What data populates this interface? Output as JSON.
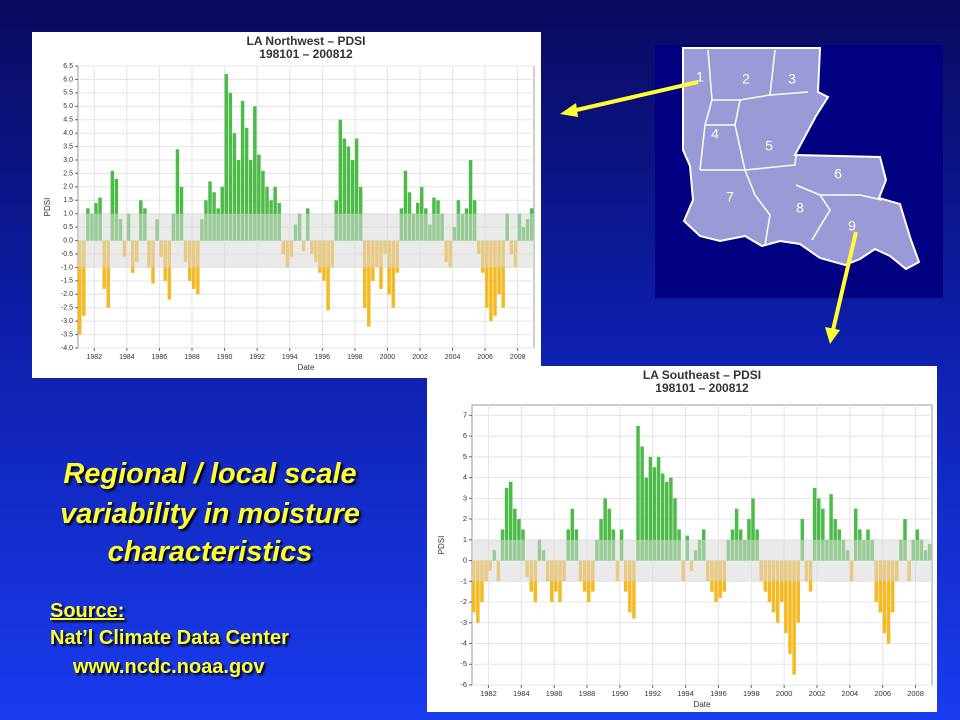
{
  "chart_data": [
    {
      "type": "bar",
      "title": "LA Northwest – PDSI",
      "subtitle": "198101 – 200812",
      "y_label": "PDSI",
      "x_label": "Date",
      "x": [
        1981,
        1981.25,
        1981.5,
        1981.75,
        1982,
        1982.25,
        1982.5,
        1982.75,
        1983,
        1983.25,
        1983.5,
        1983.75,
        1984,
        1984.25,
        1984.5,
        1984.75,
        1985,
        1985.25,
        1985.5,
        1985.75,
        1986,
        1986.25,
        1986.5,
        1986.75,
        1987,
        1987.25,
        1987.5,
        1987.75,
        1988,
        1988.25,
        1988.5,
        1988.75,
        1989,
        1989.25,
        1989.5,
        1989.75,
        1990,
        1990.25,
        1990.5,
        1990.75,
        1991,
        1991.25,
        1991.5,
        1991.75,
        1992,
        1992.25,
        1992.5,
        1992.75,
        1993,
        1993.25,
        1993.5,
        1993.75,
        1994,
        1994.25,
        1994.5,
        1994.75,
        1995,
        1995.25,
        1995.5,
        1995.75,
        1996,
        1996.25,
        1996.5,
        1996.75,
        1997,
        1997.25,
        1997.5,
        1997.75,
        1998,
        1998.25,
        1998.5,
        1998.75,
        1999,
        1999.25,
        1999.5,
        1999.75,
        2000,
        2000.25,
        2000.5,
        2000.75,
        2001,
        2001.25,
        2001.5,
        2001.75,
        2002,
        2002.25,
        2002.5,
        2002.75,
        2003,
        2003.25,
        2003.5,
        2003.75,
        2004,
        2004.25,
        2004.5,
        2004.75,
        2005,
        2005.25,
        2005.5,
        2005.75,
        2006,
        2006.25,
        2006.5,
        2006.75,
        2007,
        2007.25,
        2007.5,
        2007.75,
        2008,
        2008.25,
        2008.5,
        2008.75
      ],
      "values": [
        -3.5,
        -2.8,
        1.2,
        1.0,
        1.4,
        1.6,
        -1.8,
        -2.5,
        2.6,
        2.3,
        0.8,
        -0.6,
        1.0,
        -1.2,
        -0.8,
        1.5,
        1.2,
        -1.0,
        -1.6,
        0.8,
        -0.6,
        -1.5,
        -2.2,
        1.0,
        3.4,
        2.0,
        -0.8,
        -1.5,
        -1.8,
        -2.0,
        0.8,
        1.5,
        2.2,
        1.8,
        1.2,
        2.0,
        6.2,
        5.5,
        4.0,
        3.0,
        5.2,
        4.2,
        3.0,
        5.0,
        3.2,
        2.6,
        2.0,
        1.5,
        2.0,
        1.4,
        -0.5,
        -1.0,
        -0.6,
        0.6,
        1.0,
        -0.4,
        1.2,
        -0.5,
        -0.8,
        -1.2,
        -1.5,
        -2.6,
        -1.0,
        1.5,
        4.5,
        3.8,
        3.5,
        3.0,
        3.8,
        2.0,
        -2.5,
        -3.2,
        -1.5,
        -1.0,
        -1.8,
        -0.5,
        -2.0,
        -2.5,
        -1.2,
        1.2,
        2.6,
        1.8,
        1.0,
        1.4,
        2.0,
        1.2,
        0.6,
        1.6,
        1.5,
        1.0,
        -0.8,
        -1.0,
        0.5,
        1.5,
        1.0,
        1.2,
        3.0,
        1.5,
        -0.5,
        -1.2,
        -2.5,
        -3.0,
        -2.8,
        -2.0,
        -2.5,
        1.0,
        -0.5,
        -1.0,
        1.0,
        0.5,
        0.8,
        1.2
      ],
      "xlim": [
        1981,
        2009
      ],
      "xticks": [
        1982,
        1984,
        1986,
        1988,
        1990,
        1992,
        1994,
        1996,
        1998,
        2000,
        2002,
        2004,
        2006,
        2008
      ],
      "ylim": [
        -4,
        6.5
      ],
      "yticks": [
        {
          "value": -4,
          "label": "-4.0"
        },
        -3.5,
        {
          "value": -3,
          "label": "-3.0"
        },
        -2.5,
        {
          "value": -2,
          "label": "-2.0"
        },
        -1.5,
        {
          "value": -1,
          "label": "-1.0"
        },
        -0.5,
        {
          "value": 0,
          "label": "0.0"
        },
        0.5,
        {
          "value": 1,
          "label": "1.0"
        },
        1.5,
        {
          "value": 2,
          "label": "2.0"
        },
        2.5,
        {
          "value": 3,
          "label": "3.0"
        },
        3.5,
        {
          "value": 4,
          "label": "4.0"
        },
        4.5,
        {
          "value": 5,
          "label": "5.0"
        },
        5.5,
        {
          "value": 6,
          "label": "6.0"
        },
        6.5
      ],
      "neutral_band": [
        -1,
        1
      ],
      "positive_color": "#4cbb47",
      "negative_color": "#f5b921",
      "grid": true
    },
    {
      "type": "bar",
      "title": "LA Southeast – PDSI",
      "subtitle": "198101 – 200812",
      "y_label": "PDSI",
      "x_label": "Date",
      "x": [
        1981,
        1981.25,
        1981.5,
        1981.75,
        1982,
        1982.25,
        1982.5,
        1982.75,
        1983,
        1983.25,
        1983.5,
        1983.75,
        1984,
        1984.25,
        1984.5,
        1984.75,
        1985,
        1985.25,
        1985.5,
        1985.75,
        1986,
        1986.25,
        1986.5,
        1986.75,
        1987,
        1987.25,
        1987.5,
        1987.75,
        1988,
        1988.25,
        1988.5,
        1988.75,
        1989,
        1989.25,
        1989.5,
        1989.75,
        1990,
        1990.25,
        1990.5,
        1990.75,
        1991,
        1991.25,
        1991.5,
        1991.75,
        1992,
        1992.25,
        1992.5,
        1992.75,
        1993,
        1993.25,
        1993.5,
        1993.75,
        1994,
        1994.25,
        1994.5,
        1994.75,
        1995,
        1995.25,
        1995.5,
        1995.75,
        1996,
        1996.25,
        1996.5,
        1996.75,
        1997,
        1997.25,
        1997.5,
        1997.75,
        1998,
        1998.25,
        1998.5,
        1998.75,
        1999,
        1999.25,
        1999.5,
        1999.75,
        2000,
        2000.25,
        2000.5,
        2000.75,
        2001,
        2001.25,
        2001.5,
        2001.75,
        2002,
        2002.25,
        2002.5,
        2002.75,
        2003,
        2003.25,
        2003.5,
        2003.75,
        2004,
        2004.25,
        2004.5,
        2004.75,
        2005,
        2005.25,
        2005.5,
        2005.75,
        2006,
        2006.25,
        2006.5,
        2006.75,
        2007,
        2007.25,
        2007.5,
        2007.75,
        2008,
        2008.25,
        2008.5,
        2008.75
      ],
      "values": [
        -2.5,
        -3.0,
        -2.0,
        -1.0,
        -0.5,
        0.5,
        -1.0,
        1.5,
        3.5,
        3.8,
        2.5,
        2.0,
        1.5,
        -0.8,
        -1.5,
        -2.0,
        1.0,
        0.5,
        -1.0,
        -2.0,
        -1.5,
        -2.0,
        -1.0,
        1.5,
        2.5,
        1.5,
        -1.0,
        -1.5,
        -2.0,
        -1.5,
        1.0,
        2.0,
        3.0,
        2.5,
        1.5,
        -1.0,
        1.5,
        -1.5,
        -2.5,
        -2.8,
        6.5,
        5.5,
        4.0,
        5.0,
        4.5,
        5.0,
        4.2,
        3.8,
        4.0,
        3.0,
        1.5,
        -1.0,
        1.2,
        -0.5,
        0.5,
        1.0,
        1.5,
        -1.0,
        -1.5,
        -2.0,
        -1.8,
        -1.5,
        1.0,
        1.5,
        2.5,
        1.5,
        1.0,
        2.0,
        3.0,
        1.5,
        -1.0,
        -1.5,
        -2.0,
        -2.5,
        -3.0,
        -2.0,
        -3.5,
        -4.5,
        -5.5,
        -3.0,
        2.0,
        -1.0,
        -1.5,
        3.5,
        3.0,
        2.5,
        1.0,
        3.2,
        2.0,
        1.5,
        1.0,
        0.5,
        -1.0,
        2.5,
        1.5,
        1.0,
        1.5,
        1.0,
        -2.0,
        -2.5,
        -3.5,
        -4.0,
        -2.5,
        -1.0,
        1.0,
        2.0,
        -1.0,
        1.0,
        1.5,
        1.0,
        0.5,
        0.8
      ],
      "xlim": [
        1981,
        2009
      ],
      "xticks": [
        1982,
        1984,
        1986,
        1988,
        1990,
        1992,
        1994,
        1996,
        1998,
        2000,
        2002,
        2004,
        2006,
        2008
      ],
      "ylim": [
        -6,
        7.5
      ],
      "yticks": [
        -6,
        -5,
        -4,
        -3,
        -2,
        -1,
        0,
        1,
        2,
        3,
        4,
        5,
        6,
        7
      ],
      "neutral_band": [
        -1,
        1
      ],
      "positive_color": "#4cbb47",
      "negative_color": "#f5b921",
      "grid": true
    }
  ],
  "map": {
    "divisions": [
      "1",
      "2",
      "3",
      "4",
      "5",
      "6",
      "7",
      "8",
      "9"
    ]
  },
  "caption": [
    "Regional / local scale",
    "variability in moisture",
    "characteristics"
  ],
  "source": {
    "label": "Source:",
    "org": "Nat’l Climate Data Center",
    "url": "www.ncdc.noaa.gov"
  }
}
